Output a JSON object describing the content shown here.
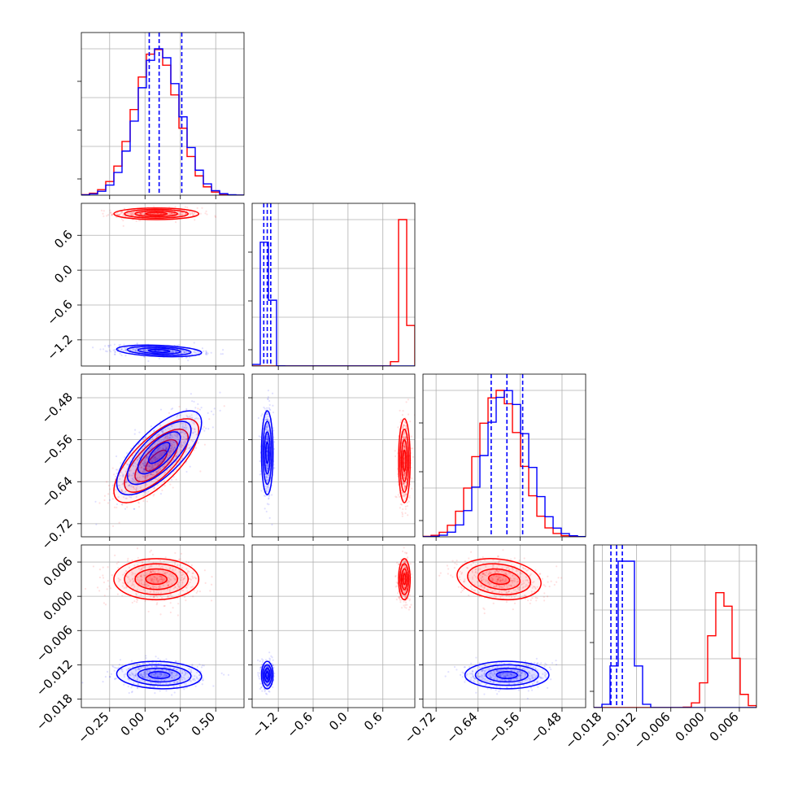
{
  "chart_data": {
    "type": "corner",
    "description_free": true,
    "parameters": 4,
    "series_colors": {
      "red": "#ff0000",
      "blue": "#0000ff"
    },
    "grid": true,
    "axes": [
      {
        "range": [
          -0.45,
          0.7
        ],
        "ticks": [
          -0.25,
          0.0,
          0.25,
          0.5
        ],
        "tick_labels": [
          "−0.25",
          "0.00",
          "0.25",
          "0.50"
        ]
      },
      {
        "range": [
          -1.65,
          1.15
        ],
        "ticks": [
          -1.2,
          -0.6,
          0.0,
          0.6
        ],
        "tick_labels": [
          "−1.2",
          "−0.6",
          "0.0",
          "0.6"
        ]
      },
      {
        "range": [
          -0.745,
          -0.435
        ],
        "ticks": [
          -0.72,
          -0.64,
          -0.56,
          -0.48
        ],
        "tick_labels": [
          "−0.72",
          "−0.64",
          "−0.56",
          "−0.48"
        ]
      },
      {
        "range": [
          -0.0195,
          0.009
        ],
        "ticks": [
          -0.018,
          -0.012,
          -0.006,
          0.0,
          0.006
        ],
        "tick_labels": [
          "−0.018",
          "−0.012",
          "−0.006",
          "0.000",
          "0.006"
        ]
      }
    ],
    "blue_quantile_lines": [
      [
        0.03,
        0.1,
        0.26
      ],
      [
        -1.45,
        -1.39,
        -1.33
      ],
      [
        -0.615,
        -0.585,
        -0.555
      ],
      [
        -0.0165,
        -0.0155,
        -0.0145
      ]
    ],
    "red_components": {
      "means": [
        0.08,
        0.97,
        -0.6,
        0.003
      ],
      "sds": [
        0.15,
        0.05,
        0.04,
        0.0018
      ],
      "correlations": {
        "0-1": 0.0,
        "0-2": 0.72,
        "0-3": 0.0,
        "1-2": 0.0,
        "1-3": 0.0,
        "2-3": -0.2
      }
    },
    "blue_components": {
      "means": [
        0.1,
        -1.39,
        -0.585,
        -0.0138
      ],
      "sds": [
        0.15,
        0.05,
        0.04,
        0.0012
      ],
      "correlations": {
        "0-1": -0.3,
        "0-2": 0.72,
        "0-3": -0.1,
        "1-2": 0.0,
        "1-3": 0.0,
        "2-3": 0.0
      }
    }
  }
}
